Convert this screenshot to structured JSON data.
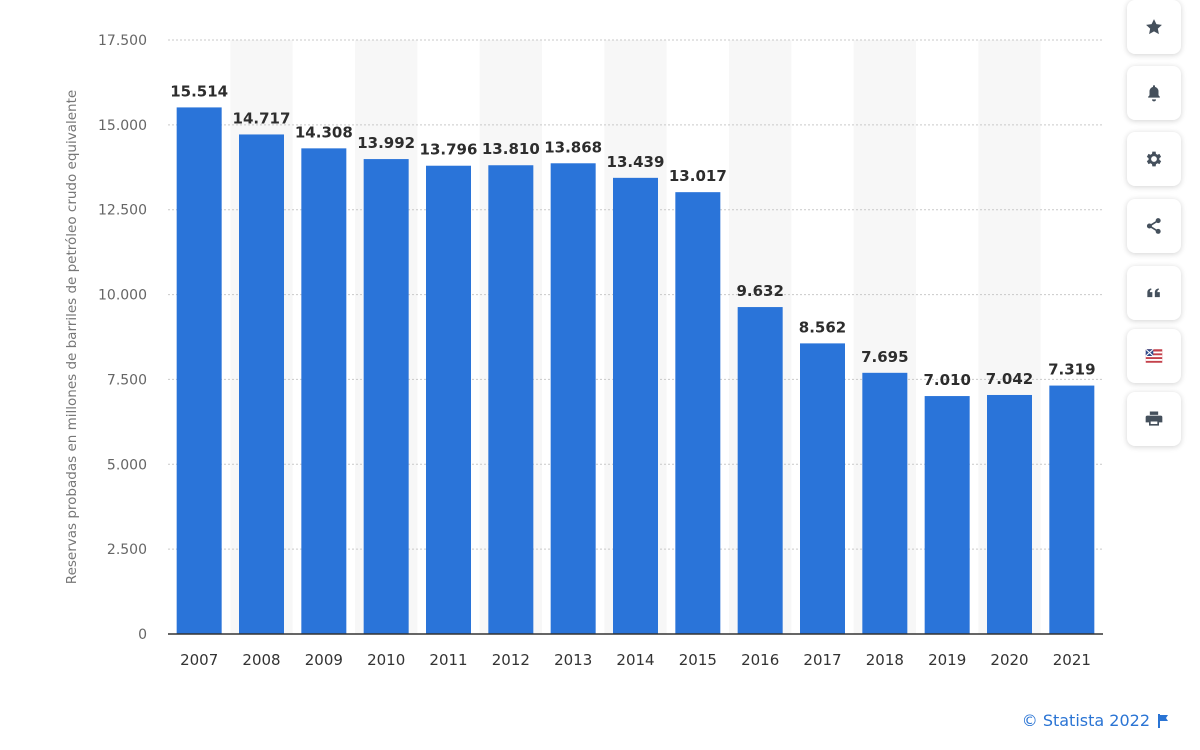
{
  "chart_data": {
    "type": "bar",
    "categories": [
      "2007",
      "2008",
      "2009",
      "2010",
      "2011",
      "2012",
      "2013",
      "2014",
      "2015",
      "2016",
      "2017",
      "2018",
      "2019",
      "2020",
      "2021"
    ],
    "values": [
      15514,
      14717,
      14308,
      13992,
      13796,
      13810,
      13868,
      13439,
      13017,
      9632,
      8562,
      7695,
      7010,
      7042,
      7319
    ],
    "value_labels": [
      "15.514",
      "14.717",
      "14.308",
      "13.992",
      "13.796",
      "13.810",
      "13.868",
      "13.439",
      "13.017",
      "9.632",
      "8.562",
      "7.695",
      "7.010",
      "7.042",
      "7.319"
    ],
    "ylabel": "Reservas probadas en millones de barriles de petróleo crudo equivalente",
    "ylim": [
      0,
      17500
    ],
    "yticks": [
      0,
      2500,
      5000,
      7500,
      10000,
      12500,
      15000,
      17500
    ],
    "ytick_labels": [
      "0",
      "2.500",
      "5.000",
      "7.500",
      "10.000",
      "12.500",
      "15.000",
      "17.500"
    ],
    "grid": true,
    "bar_color": "#2a74d9"
  },
  "toolbar": {
    "buttons": [
      {
        "name": "favorite-button",
        "icon": "star-icon"
      },
      {
        "name": "notification-button",
        "icon": "bell-icon"
      },
      {
        "name": "settings-button",
        "icon": "gear-icon"
      },
      {
        "name": "share-button",
        "icon": "share-icon"
      },
      {
        "name": "cite-button",
        "icon": "quote-icon"
      },
      {
        "name": "language-button",
        "icon": "flag-icon"
      },
      {
        "name": "print-button",
        "icon": "print-icon"
      }
    ]
  },
  "credit": {
    "text": "© Statista 2022"
  }
}
